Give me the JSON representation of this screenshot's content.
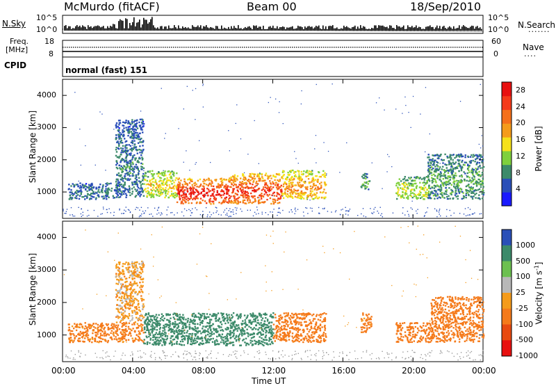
{
  "header": {
    "station": "McMurdo (fitACF)",
    "beam": "Beam 00",
    "date": "18/Sep/2010"
  },
  "top_panels": {
    "nsky_label": "N.Sky",
    "nsearch_label": "N.Search",
    "noise_ticks_left": [
      "10^5",
      "10^0"
    ],
    "noise_ticks_right": [
      "10^5",
      "10^0"
    ],
    "freq_label_1": "Freq.",
    "freq_label_2": "[MHz]",
    "freq_ticks": [
      "18",
      "8"
    ],
    "nave_label": "Nave",
    "nave_ticks": [
      "60",
      "0"
    ],
    "cpid_label": "CPID",
    "cpid_value": "normal (fast) 151"
  },
  "colors": {
    "power_scale": [
      "#1a1aff",
      "#2a4fb8",
      "#3c8a6a",
      "#7fd03c",
      "#f5e11a",
      "#f59b1a",
      "#f5701a",
      "#f53a1a",
      "#e81010"
    ],
    "velocity_scale": [
      "#2a4fb8",
      "#3c8a6a",
      "#6cc050",
      "#b8b8b8",
      "#f59b1a",
      "#f57a1a",
      "#e84a10",
      "#e81010"
    ],
    "ground_scatter": "#9a9a9a"
  },
  "chart_data": [
    {
      "type": "heatmap",
      "panel": "power",
      "ylabel": "Slant Range [km]",
      "xlabel": "Time UT",
      "x_ticks": [
        "00:00",
        "04:00",
        "08:00",
        "12:00",
        "16:00",
        "20:00",
        "00:00"
      ],
      "y_ticks": [
        1000,
        2000,
        3000,
        4000
      ],
      "xlim_hours": [
        0,
        24
      ],
      "ylim_km": [
        180,
        4500
      ],
      "colorbar": {
        "label": "Power [dB]",
        "ticks": [
          4,
          8,
          12,
          16,
          20,
          24,
          28
        ],
        "range": [
          0,
          30
        ]
      },
      "scatter_regions": [
        {
          "t0": 0.3,
          "t1": 3.3,
          "r0": 800,
          "r1": 1300,
          "level": 6
        },
        {
          "t0": 3.0,
          "t1": 4.6,
          "r0": 850,
          "r1": 3300,
          "level": 6
        },
        {
          "t0": 4.6,
          "t1": 6.5,
          "r0": 850,
          "r1": 1700,
          "level": 14
        },
        {
          "t0": 6.5,
          "t1": 9.5,
          "r0": 650,
          "r1": 1450,
          "level": 26
        },
        {
          "t0": 9.5,
          "t1": 12.5,
          "r0": 650,
          "r1": 1600,
          "level": 24
        },
        {
          "t0": 12.5,
          "t1": 15.0,
          "r0": 800,
          "r1": 1700,
          "level": 18
        },
        {
          "t0": 17.0,
          "t1": 17.5,
          "r0": 1100,
          "r1": 1600,
          "level": 8
        },
        {
          "t0": 19.0,
          "t1": 20.8,
          "r0": 800,
          "r1": 1500,
          "level": 12
        },
        {
          "t0": 20.8,
          "t1": 24.0,
          "r0": 800,
          "r1": 2200,
          "level": 8
        }
      ]
    },
    {
      "type": "heatmap",
      "panel": "velocity",
      "ylabel": "Slant Range [km]",
      "xlabel": "Time UT",
      "x_ticks": [
        "00:00",
        "04:00",
        "08:00",
        "12:00",
        "16:00",
        "20:00",
        "00:00"
      ],
      "y_ticks": [
        1000,
        2000,
        3000,
        4000
      ],
      "xlim_hours": [
        0,
        24
      ],
      "ylim_km": [
        180,
        4500
      ],
      "colorbar": {
        "label": "Velocity [m s^-1]",
        "ticks": [
          1000,
          500,
          100,
          25,
          -25,
          -100,
          -500,
          -1000
        ]
      },
      "scatter_regions": [
        {
          "t0": 0.3,
          "t1": 4.6,
          "r0": 800,
          "r1": 1400,
          "velocity": -150
        },
        {
          "t0": 3.0,
          "t1": 4.6,
          "r0": 1400,
          "r1": 3300,
          "velocity": -60
        },
        {
          "t0": 4.6,
          "t1": 12.0,
          "r0": 700,
          "r1": 1700,
          "velocity": 200
        },
        {
          "t0": 12.0,
          "t1": 15.0,
          "r0": 800,
          "r1": 1700,
          "velocity": -200
        },
        {
          "t0": 17.0,
          "t1": 17.6,
          "r0": 1100,
          "r1": 1700,
          "velocity": -150
        },
        {
          "t0": 19.0,
          "t1": 21.0,
          "r0": 800,
          "r1": 1400,
          "velocity": -400
        },
        {
          "t0": 21.0,
          "t1": 24.0,
          "r0": 800,
          "r1": 2200,
          "velocity": -300
        }
      ]
    }
  ]
}
